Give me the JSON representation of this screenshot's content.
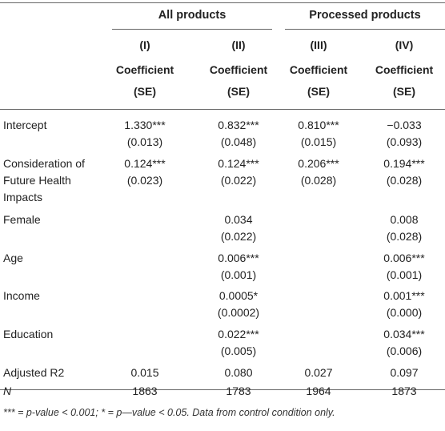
{
  "table": {
    "groups": [
      "All products",
      "Processed products"
    ],
    "columns": [
      {
        "num": "(I)",
        "label": "Coefficient",
        "se": "(SE)"
      },
      {
        "num": "(II)",
        "label": "Coefficient",
        "se": "(SE)"
      },
      {
        "num": "(III)",
        "label": "Coefficient",
        "se": "(SE)"
      },
      {
        "num": "(IV)",
        "label": "Coefficient",
        "se": "(SE)"
      }
    ],
    "rows": [
      {
        "label": [
          "Intercept"
        ],
        "cells": [
          [
            "1.330***",
            "(0.013)"
          ],
          [
            "0.832***",
            "(0.048)"
          ],
          [
            "0.810***",
            "(0.015)"
          ],
          [
            "−0.033",
            "(0.093)"
          ]
        ]
      },
      {
        "label": [
          "Consideration of",
          "Future Health",
          "Impacts"
        ],
        "cells": [
          [
            "0.124***",
            "(0.023)"
          ],
          [
            "0.124***",
            "(0.022)"
          ],
          [
            "0.206***",
            "(0.028)"
          ],
          [
            "0.194***",
            "(0.028)"
          ]
        ]
      },
      {
        "label": [
          "Female"
        ],
        "cells": [
          [
            "",
            ""
          ],
          [
            "0.034",
            "(0.022)"
          ],
          [
            "",
            ""
          ],
          [
            "0.008",
            "(0.028)"
          ]
        ]
      },
      {
        "label": [
          "Age"
        ],
        "cells": [
          [
            "",
            ""
          ],
          [
            "0.006***",
            "(0.001)"
          ],
          [
            "",
            ""
          ],
          [
            "0.006***",
            "(0.001)"
          ]
        ]
      },
      {
        "label": [
          "Income"
        ],
        "cells": [
          [
            "",
            ""
          ],
          [
            "0.0005*",
            "(0.0002)"
          ],
          [
            "",
            ""
          ],
          [
            "0.001***",
            "(0.000)"
          ]
        ]
      },
      {
        "label": [
          "Education"
        ],
        "cells": [
          [
            "",
            ""
          ],
          [
            "0.022***",
            "(0.005)"
          ],
          [
            "",
            ""
          ],
          [
            "0.034***",
            "(0.006)"
          ]
        ]
      },
      {
        "label": [
          "Adjusted R2"
        ],
        "cells": [
          [
            "0.015"
          ],
          [
            "0.080"
          ],
          [
            "0.027"
          ],
          [
            "0.097"
          ]
        ]
      },
      {
        "label": [
          "N"
        ],
        "cells": [
          [
            "1863"
          ],
          [
            "1783"
          ],
          [
            "1964"
          ],
          [
            "1873"
          ]
        ]
      }
    ],
    "footnote": "*** = p-value < 0.001; * = p—value < 0.05. Data from control condition only."
  }
}
